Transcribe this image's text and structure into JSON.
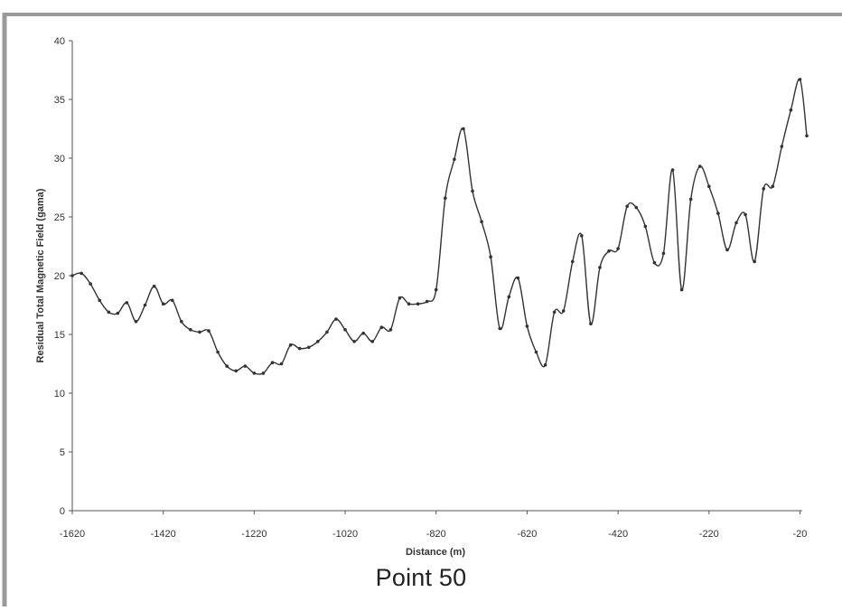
{
  "caption": "Point 50",
  "chart_data": {
    "type": "line",
    "title": "",
    "xlabel": "Distance (m)",
    "ylabel": "Residual Total Magnetic Field (gama)",
    "xlim": [
      -1620,
      -15
    ],
    "ylim": [
      0,
      40
    ],
    "x_ticks": [
      -1620,
      -1420,
      -1220,
      -1020,
      -820,
      -620,
      -420,
      -220,
      -20
    ],
    "y_ticks": [
      0,
      5,
      10,
      15,
      20,
      25,
      30,
      35,
      40
    ],
    "grid": false,
    "legend": "none",
    "colors": {
      "line": "#333333",
      "marker": "#333333",
      "frame": "#9a9a9a",
      "axis": "#555555"
    },
    "series": [
      {
        "x": [
          -1620,
          -1600,
          -1580,
          -1560,
          -1540,
          -1520,
          -1500,
          -1480,
          -1460,
          -1440,
          -1420,
          -1400,
          -1380,
          -1360,
          -1340,
          -1320,
          -1300,
          -1280,
          -1260,
          -1240,
          -1220,
          -1200,
          -1180,
          -1160,
          -1140,
          -1120,
          -1100,
          -1080,
          -1060,
          -1040,
          -1020,
          -1000,
          -980,
          -960,
          -940,
          -920,
          -900,
          -880,
          -860,
          -840,
          -820,
          -800,
          -780,
          -760,
          -740,
          -720,
          -700,
          -680,
          -660,
          -640,
          -620,
          -600,
          -580,
          -560,
          -540,
          -520,
          -500,
          -480,
          -460,
          -440,
          -420,
          -400,
          -380,
          -360,
          -340,
          -320,
          -300,
          -280,
          -260,
          -240,
          -220,
          -200,
          -180,
          -160,
          -140,
          -120,
          -100,
          -80,
          -60,
          -40,
          -20,
          -5
        ],
        "values": [
          20.0,
          20.2,
          19.3,
          17.9,
          16.9,
          16.8,
          17.7,
          16.1,
          17.5,
          19.1,
          17.6,
          17.9,
          16.1,
          15.4,
          15.2,
          15.3,
          13.5,
          12.3,
          11.9,
          12.3,
          11.7,
          11.7,
          12.6,
          12.5,
          14.1,
          13.8,
          13.9,
          14.4,
          15.2,
          16.3,
          15.4,
          14.4,
          15.1,
          14.4,
          15.6,
          15.4,
          18.1,
          17.6,
          17.6,
          17.8,
          18.8,
          26.6,
          29.9,
          32.5,
          27.2,
          24.6,
          21.6,
          15.5,
          18.2,
          19.8,
          15.7,
          13.5,
          12.4,
          16.9,
          17.0,
          21.2,
          23.4,
          15.9,
          20.7,
          22.1,
          22.3,
          25.9,
          25.8,
          24.2,
          21.1,
          21.9,
          29.0,
          18.8,
          26.5,
          29.3,
          27.6,
          25.3,
          22.2,
          24.5,
          25.2,
          21.2,
          27.4,
          27.6,
          31.0,
          34.1,
          36.7,
          31.9
        ]
      }
    ]
  }
}
